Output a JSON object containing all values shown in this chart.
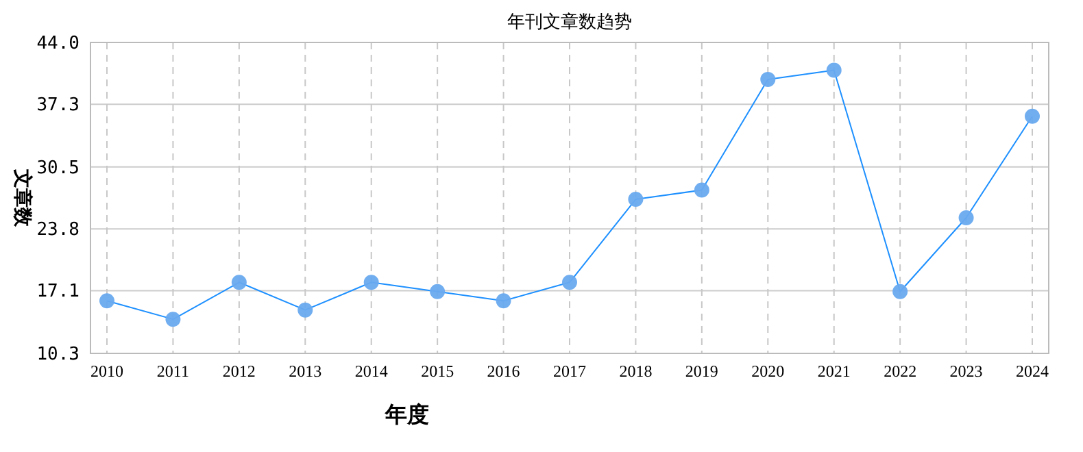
{
  "chart_data": {
    "type": "line",
    "title": "年刊文章数趋势",
    "xlabel": "年度",
    "ylabel": "文章数",
    "categories": [
      "2010",
      "2011",
      "2012",
      "2013",
      "2014",
      "2015",
      "2016",
      "2017",
      "2018",
      "2019",
      "2020",
      "2021",
      "2022",
      "2023",
      "2024"
    ],
    "series": [
      {
        "color": "#1e90ff",
        "values": [
          16,
          14,
          18,
          15,
          18,
          17,
          16,
          18,
          27,
          28,
          40,
          41,
          17,
          25,
          36
        ]
      }
    ],
    "ylim": [
      10.3,
      44.0
    ],
    "yticks": [
      {
        "value": 10.3,
        "label": "10.3"
      },
      {
        "value": 17.1,
        "label": "17.1"
      },
      {
        "value": 23.8,
        "label": "23.8"
      },
      {
        "value": 30.5,
        "label": "30.5"
      },
      {
        "value": 37.3,
        "label": "37.3"
      },
      {
        "value": 44.0,
        "label": "44.0"
      }
    ],
    "grid": true,
    "marker": "circle",
    "line_style": "solid"
  }
}
